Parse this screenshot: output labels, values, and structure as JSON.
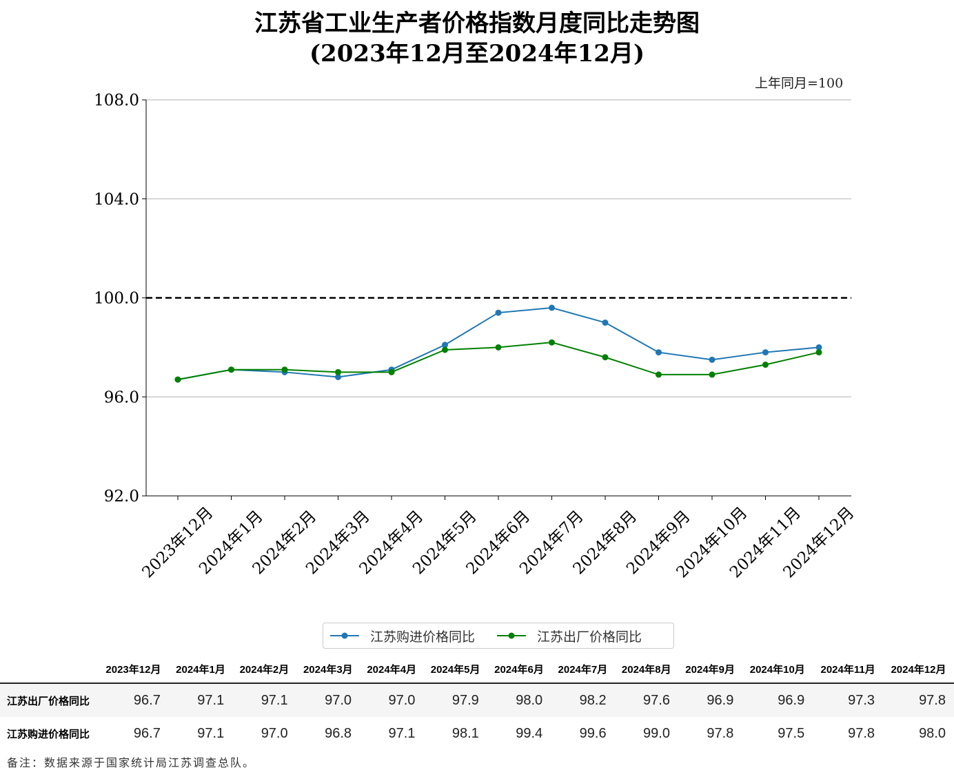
{
  "title_line1": "江苏省工业生产者价格指数月度同比走势图",
  "title_line2": "(2023年12月至2024年12月)",
  "unit_note": "上年同月=100",
  "chart_data": {
    "type": "line",
    "categories": [
      "2023年12月",
      "2024年1月",
      "2024年2月",
      "2024年3月",
      "2024年4月",
      "2024年5月",
      "2024年6月",
      "2024年7月",
      "2024年8月",
      "2024年9月",
      "2024年10月",
      "2024年11月",
      "2024年12月"
    ],
    "series": [
      {
        "name": "江苏购进价格同比",
        "color": "#1f77b4",
        "values": [
          96.7,
          97.1,
          97.0,
          96.8,
          97.1,
          98.1,
          99.4,
          99.6,
          99.0,
          97.8,
          97.5,
          97.8,
          98.0
        ]
      },
      {
        "name": "江苏出厂价格同比",
        "color": "#008000",
        "values": [
          96.7,
          97.1,
          97.1,
          97.0,
          97.0,
          97.9,
          98.0,
          98.2,
          97.6,
          96.9,
          96.9,
          97.3,
          97.8
        ]
      }
    ],
    "yticks": [
      92,
      96,
      100,
      104,
      108
    ],
    "ylim": [
      92,
      108
    ],
    "reference_line": 100,
    "grid": "horizontal",
    "legend": "bottom-center"
  },
  "table": {
    "rows": [
      {
        "label": "江苏出厂价格同比",
        "values": [
          "96.7",
          "97.1",
          "97.1",
          "97.0",
          "97.0",
          "97.9",
          "98.0",
          "98.2",
          "97.6",
          "96.9",
          "96.9",
          "97.3",
          "97.8"
        ]
      },
      {
        "label": "江苏购进价格同比",
        "values": [
          "96.7",
          "97.1",
          "97.0",
          "96.8",
          "97.1",
          "98.1",
          "99.4",
          "99.6",
          "99.0",
          "97.8",
          "97.5",
          "97.8",
          "98.0"
        ]
      }
    ]
  },
  "note": "备注：数据来源于国家统计局江苏调查总队。"
}
